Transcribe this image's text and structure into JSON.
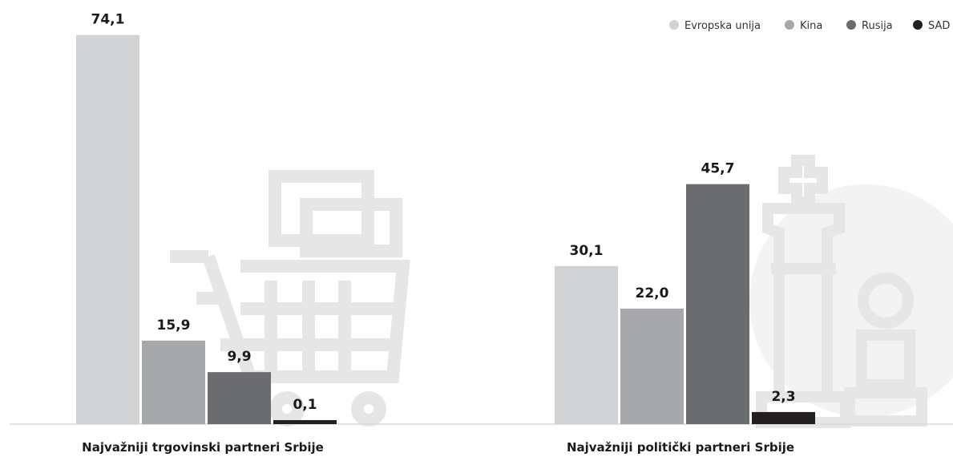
{
  "chart_data": {
    "type": "bar",
    "categories": [
      "Najvažniji trgovinski partneri Srbije",
      "Najvažniji politički partneri Srbije"
    ],
    "series": [
      {
        "name": "Evropska unija",
        "color": "#d1d2d4",
        "values": [
          74.1,
          30.1
        ]
      },
      {
        "name": "Kina",
        "color": "#a7a8ab",
        "values": [
          15.9,
          22.0
        ]
      },
      {
        "name": "Rusija",
        "color": "#6b6c70",
        "values": [
          9.9,
          45.7
        ]
      },
      {
        "name": "SAD",
        "color": "#231f20",
        "values": [
          0.1,
          2.3
        ]
      }
    ],
    "value_labels": [
      [
        "74,1",
        "15,9",
        "9,9",
        "0,1"
      ],
      [
        "30,1",
        "22,0",
        "45,7",
        "2,3"
      ]
    ],
    "ylim": [
      0,
      80
    ],
    "legend": "top-right",
    "grid": false,
    "decorative_icons": [
      "shopping-cart-icon",
      "chess-pieces-icon"
    ]
  }
}
